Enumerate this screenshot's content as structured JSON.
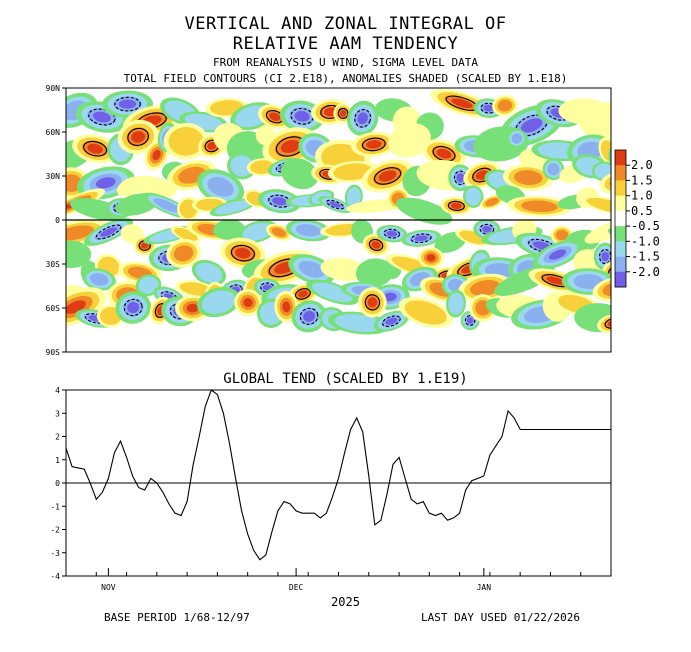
{
  "titles": {
    "main_line1": "VERTICAL AND ZONAL INTEGRAL OF",
    "main_line2": "RELATIVE AAM TENDENCY",
    "sub_line1": "FROM REANALYSIS U WIND,  SIGMA LEVEL DATA",
    "sub_line2": "TOTAL FIELD CONTOURS (CI 2.E18),  ANOMALIES SHADED (SCALED BY 1.E18)",
    "lower": "GLOBAL TEND (SCALED BY 1.E19)"
  },
  "footer": {
    "base_period": "BASE PERIOD  1/68-12/97",
    "last_day": "LAST DAY USED 01/22/2026",
    "year": "2025"
  },
  "colors": {
    "pos_strong": "#e03c14",
    "pos_med": "#f08a28",
    "pos_weak": "#f8d13a",
    "neutral_pos": "#ffffa0",
    "neutral_neg": "#ffffff",
    "neg_weak": "#78e078",
    "neg_med": "#9ad8f0",
    "neg_strong": "#8ab0f0",
    "neg_xstrong": "#7060e8",
    "line": "#000000"
  },
  "chart_data": [
    {
      "type": "heatmap",
      "title": "VERTICAL AND ZONAL INTEGRAL OF RELATIVE AAM TENDENCY",
      "ylabel": "",
      "xlabel": "",
      "y_ticks": [
        "90N",
        "60N",
        "30N",
        "0",
        "30S",
        "60S",
        "90S"
      ],
      "y_tick_values": [
        90,
        60,
        30,
        0,
        -30,
        -60,
        -90
      ],
      "legend": {
        "placement": "right",
        "levels": [
          "2.0",
          "1.5",
          "1.0",
          "0.5",
          "-0.5",
          "-1.0",
          "-1.5",
          "-2.0"
        ]
      },
      "ylim": [
        -90,
        90
      ],
      "zero_line": 0
    },
    {
      "type": "line",
      "title": "GLOBAL TEND (SCALED BY 1.E19)",
      "ylim": [
        -4,
        4
      ],
      "y_ticks": [
        4,
        3,
        2,
        1,
        0,
        -1,
        -2,
        -3,
        -4
      ],
      "x_ticks": [
        "NOV",
        "DEC",
        "JAN"
      ],
      "x_tick_days": [
        7,
        38,
        69
      ],
      "xlim": [
        0,
        90
      ],
      "xlabel": "2025",
      "ylabel": "",
      "series": [
        {
          "x": [
            0,
            1,
            2,
            3,
            4,
            5,
            6,
            7,
            8,
            9,
            10,
            11,
            12,
            13,
            14,
            15,
            16,
            17,
            18,
            19,
            20,
            21,
            22,
            23,
            24,
            25,
            26,
            27,
            28,
            29,
            30,
            31,
            32,
            33,
            34,
            35,
            36,
            37,
            38,
            39,
            40,
            41,
            42,
            43,
            44,
            45,
            46,
            47,
            48,
            49,
            50,
            51,
            52,
            53,
            54,
            55,
            56,
            57,
            58,
            59,
            60,
            61,
            62,
            63,
            64,
            65,
            66,
            67,
            68,
            69,
            70,
            71,
            72,
            73,
            74,
            75,
            76,
            77,
            78,
            79,
            80,
            81,
            82,
            83,
            84,
            85,
            86,
            87,
            88,
            89,
            90
          ],
          "y": [
            1.5,
            0.7,
            0.65,
            0.6,
            0.0,
            -0.7,
            -0.4,
            0.2,
            1.3,
            1.8,
            1.1,
            0.3,
            -0.2,
            -0.3,
            0.2,
            0.0,
            -0.4,
            -0.9,
            -1.3,
            -1.4,
            -0.8,
            0.8,
            2.0,
            3.3,
            4.0,
            3.8,
            3.0,
            1.7,
            0.2,
            -1.2,
            -2.2,
            -2.9,
            -3.3,
            -3.1,
            -2.1,
            -1.2,
            -0.8,
            -0.9,
            -1.2,
            -1.3,
            -1.3,
            -1.3,
            -1.5,
            -1.3,
            -0.6,
            0.2,
            1.3,
            2.3,
            2.8,
            2.2,
            0.3,
            -1.8,
            -1.6,
            -0.5,
            0.8,
            1.1,
            0.2,
            -0.7,
            -0.9,
            -0.8,
            -1.3,
            -1.4,
            -1.3,
            -1.6,
            -1.5,
            -1.3,
            -0.3,
            0.1,
            0.2,
            0.3,
            1.2,
            1.6,
            2.0,
            3.1,
            2.8,
            2.3,
            2.3,
            2.3,
            2.3,
            2.3,
            2.3,
            2.3,
            2.3,
            2.3,
            2.3,
            2.3,
            2.3,
            2.3,
            2.3,
            2.3,
            2.3
          ]
        }
      ]
    }
  ]
}
